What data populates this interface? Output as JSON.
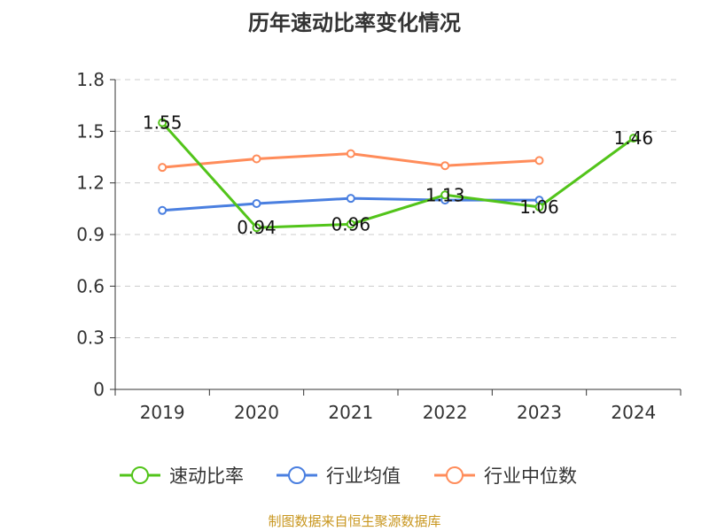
{
  "chart_data": {
    "type": "line",
    "title": "历年速动比率变化情况",
    "categories": [
      "2019",
      "2020",
      "2021",
      "2022",
      "2023",
      "2024"
    ],
    "ylim": [
      0,
      1.8
    ],
    "yticks": [
      "0",
      "0.3",
      "0.6",
      "0.9",
      "1.2",
      "1.5",
      "1.8"
    ],
    "grid": true,
    "legend_position": "bottom",
    "series": [
      {
        "name": "速动比率",
        "color": "#52c41a",
        "values": [
          1.55,
          0.94,
          0.96,
          1.13,
          1.06,
          1.46
        ],
        "labels": [
          "1.55",
          "0.94",
          "0.96",
          "1.13",
          "1.06",
          "1.46"
        ]
      },
      {
        "name": "行业均值",
        "color": "#4a7fe0",
        "values": [
          1.04,
          1.08,
          1.11,
          1.1,
          1.1,
          null
        ]
      },
      {
        "name": "行业中位数",
        "color": "#ff8c5a",
        "values": [
          1.29,
          1.34,
          1.37,
          1.3,
          1.33,
          null
        ]
      }
    ]
  },
  "source": "制图数据来自恒生聚源数据库"
}
